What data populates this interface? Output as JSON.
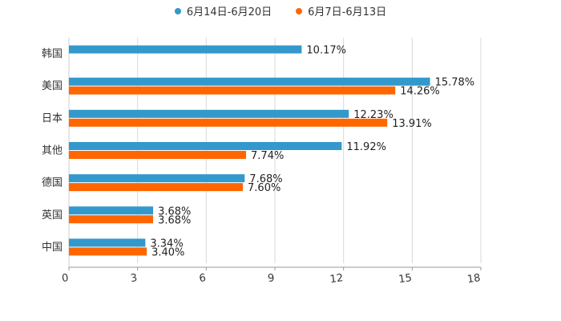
{
  "chart_data": {
    "type": "bar",
    "orientation": "horizontal",
    "categories": [
      "韩国",
      "美国",
      "日本",
      "其他",
      "德国",
      "英国",
      "中国"
    ],
    "series": [
      {
        "name": "6月14日-6月20日",
        "color": "#3399cc",
        "values": [
          10.17,
          15.78,
          12.23,
          11.92,
          7.68,
          3.68,
          3.34
        ],
        "labels": [
          "10.17%",
          "15.78%",
          "12.23%",
          "11.92%",
          "7.68%",
          "3.68%",
          "3.34%"
        ]
      },
      {
        "name": "6月7日-6月13日",
        "color": "#ff6600",
        "values": [
          null,
          14.26,
          13.91,
          7.74,
          7.6,
          3.68,
          3.4
        ],
        "labels": [
          "",
          "14.26%",
          "13.91%",
          "7.74%",
          "7.60%",
          "3.68%",
          "3.40%"
        ]
      }
    ],
    "xlim": [
      0,
      18
    ],
    "xticks": [
      0,
      3,
      6,
      9,
      12,
      15,
      18
    ],
    "xtick_labels": [
      "0",
      "3",
      "6",
      "9",
      "12",
      "15",
      "18"
    ],
    "grid": true,
    "legend_position": "top-center",
    "title": "",
    "xlabel": "",
    "ylabel": ""
  }
}
